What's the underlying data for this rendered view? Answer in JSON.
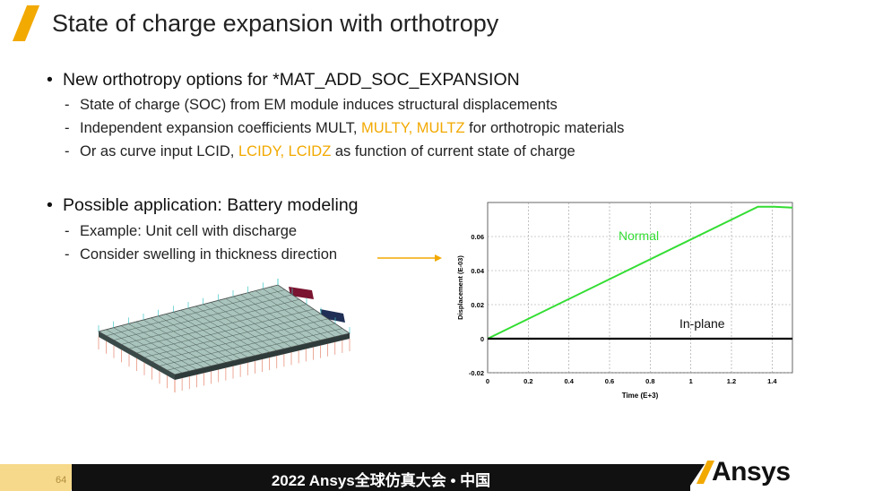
{
  "title": "State of charge expansion with orthotropy",
  "bullets": [
    {
      "text": "New orthotropy options for *MAT_ADD_SOC_EXPANSION",
      "subs": [
        {
          "parts": [
            "State of charge (SOC) from EM module induces structural displacements"
          ]
        },
        {
          "parts": [
            "Independent expansion coefficients MULT, ",
            "MULTY, MULTZ",
            " for orthotropic materials"
          ]
        },
        {
          "parts": [
            "Or as curve input LCID, ",
            "LCIDY, LCIDZ",
            " as function of current state of charge"
          ]
        }
      ]
    },
    {
      "text": "Possible application: Battery modeling",
      "subs": [
        {
          "parts": [
            "Example: Unit cell with discharge"
          ]
        },
        {
          "parts": [
            "Consider swelling in thickness direction"
          ]
        }
      ]
    }
  ],
  "colors": {
    "accent": "#f2a900",
    "normal_curve": "#33dd33",
    "inplane_curve": "#000000"
  },
  "chart_data": {
    "type": "line",
    "xlabel": "Time (E+3)",
    "ylabel": "Displacement (E-03)",
    "xlim": [
      0,
      1.5
    ],
    "ylim": [
      -0.02,
      0.08
    ],
    "x_ticks": [
      "0",
      "0.2",
      "0.4",
      "0.6",
      "0.8",
      "1",
      "1.2",
      "1.4"
    ],
    "y_ticks": [
      "-0.02",
      "0",
      "0.02",
      "0.04",
      "0.06"
    ],
    "grid": true,
    "annotations": [
      "Normal",
      "In-plane"
    ],
    "series": [
      {
        "name": "Normal",
        "x": [
          0,
          1.33,
          1.41,
          1.5
        ],
        "y": [
          0,
          0.0775,
          0.0775,
          0.077
        ]
      },
      {
        "name": "In-plane",
        "x": [
          0,
          1.5
        ],
        "y": [
          0,
          0
        ]
      }
    ]
  },
  "footer": {
    "page": "64",
    "event": "2022 Ansys全球仿真大会 • 中国",
    "logo": "Ansys"
  }
}
